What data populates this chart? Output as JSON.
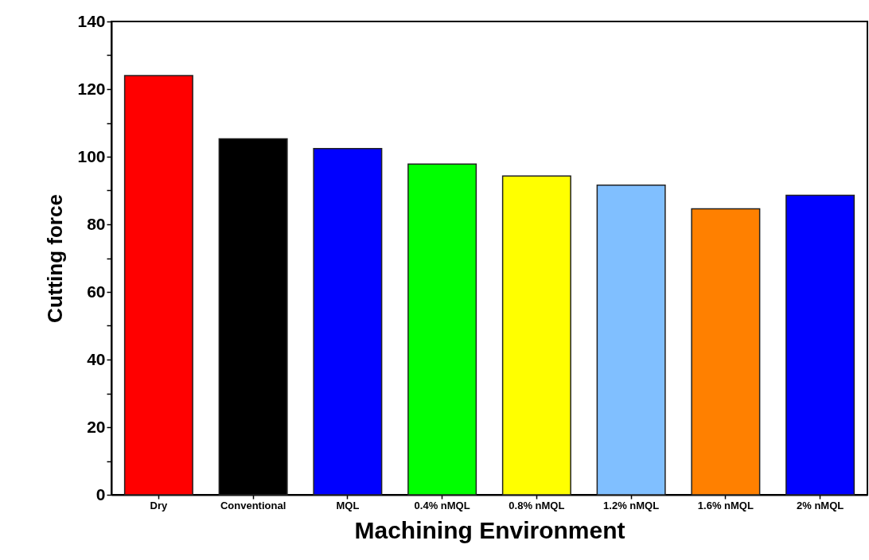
{
  "chart_data": {
    "type": "bar",
    "xlabel": "Machining Environment",
    "ylabel": "Cutting force",
    "categories": [
      "Dry",
      "Conventional",
      "MQL",
      "0.4% nMQL",
      "0.8% nMQL",
      "1.2% nMQL",
      "1.6% nMQL",
      "2% nMQL"
    ],
    "values": [
      124,
      105.3,
      102.4,
      97.8,
      94.3,
      91.6,
      84.6,
      88.6
    ],
    "colors": [
      "#ff0000",
      "#000000",
      "#0000ff",
      "#00ff00",
      "#ffff00",
      "#80bfff",
      "#ff8000",
      "#0000ff"
    ],
    "ylim": [
      0,
      140
    ],
    "yticks": [
      0,
      {
        "value": 10,
        "label": null
      },
      20,
      {
        "value": 30,
        "label": null
      },
      40,
      {
        "value": 50,
        "label": null
      },
      60,
      {
        "value": 70,
        "label": null
      },
      80,
      {
        "value": 90,
        "label": null
      },
      100,
      {
        "value": 110,
        "label": null
      },
      120,
      {
        "value": 130,
        "label": null
      },
      140
    ],
    "grid": false
  }
}
